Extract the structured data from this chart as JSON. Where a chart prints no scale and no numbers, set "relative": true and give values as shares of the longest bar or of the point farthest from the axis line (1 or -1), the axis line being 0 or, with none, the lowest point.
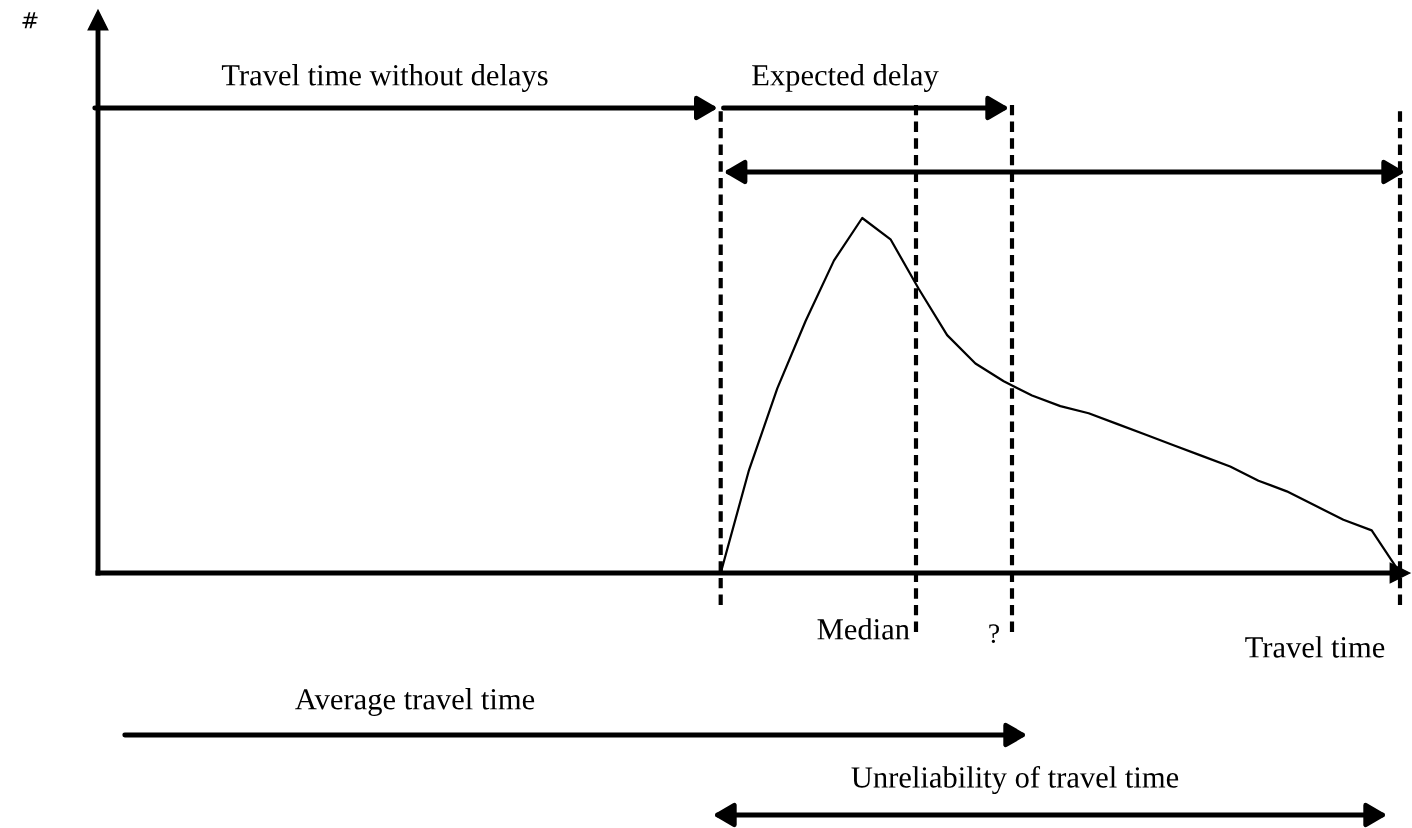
{
  "chart_data": {
    "type": "line",
    "relative": true,
    "xlabel": "Travel time",
    "color": "#000000",
    "categories": [
      null,
      null,
      null,
      null,
      null,
      null,
      null,
      null,
      null,
      null,
      null,
      null,
      null,
      null,
      null,
      null,
      null,
      null,
      null,
      null,
      null,
      null,
      null,
      null,
      null,
      null,
      null,
      null,
      null,
      null,
      null,
      null,
      null,
      null,
      null,
      null,
      null,
      null,
      null,
      null,
      null,
      null,
      null,
      null,
      null,
      null,
      null
    ],
    "values": [
      null,
      null,
      null,
      null,
      null,
      null,
      null,
      null,
      null,
      null,
      null,
      null,
      null,
      null,
      null,
      null,
      null,
      null,
      null,
      null,
      null,
      null,
      0,
      0.29,
      0.52,
      0.71,
      0.88,
      1,
      0.94,
      0.8,
      0.67,
      0.59,
      0.54,
      0.5,
      0.47,
      0.45,
      0.42,
      0.39,
      0.36,
      0.33,
      0.3,
      0.26,
      0.23,
      0.19,
      0.15,
      0.12,
      0
    ],
    "annotations": [
      "#",
      "Travel time without delays",
      "Expected delay",
      "Median",
      "?",
      "Average travel time",
      "Unreliability of travel time"
    ],
    "legend": false
  }
}
